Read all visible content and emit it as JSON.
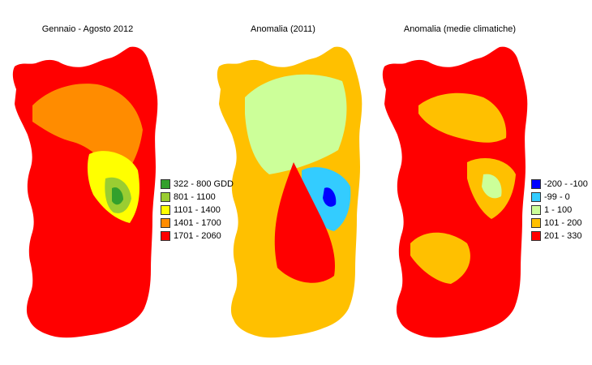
{
  "panels": [
    {
      "title": "Gennaio - Agosto 2012",
      "legend": [
        {
          "label": "322 - 800 GDD",
          "color": "#33a02c"
        },
        {
          "label": "801 - 1100",
          "color": "#9acd32"
        },
        {
          "label": "1101 - 1400",
          "color": "#ffff00"
        },
        {
          "label": "1401 - 1700",
          "color": "#ff8c00"
        },
        {
          "label": "1701 - 2060",
          "color": "#ff0000"
        }
      ]
    },
    {
      "title": "Anomalia (2011)",
      "legend": []
    },
    {
      "title": "Anomalia (medie climatiche)",
      "legend": [
        {
          "label": "-200 - -100",
          "color": "#0000ff"
        },
        {
          "label": "-99 - 0",
          "color": "#33ccff"
        },
        {
          "label": "1 - 100",
          "color": "#ccff99"
        },
        {
          "label": "101 - 200",
          "color": "#ffc000"
        },
        {
          "label": "201 - 330",
          "color": "#ff0000"
        }
      ]
    }
  ]
}
